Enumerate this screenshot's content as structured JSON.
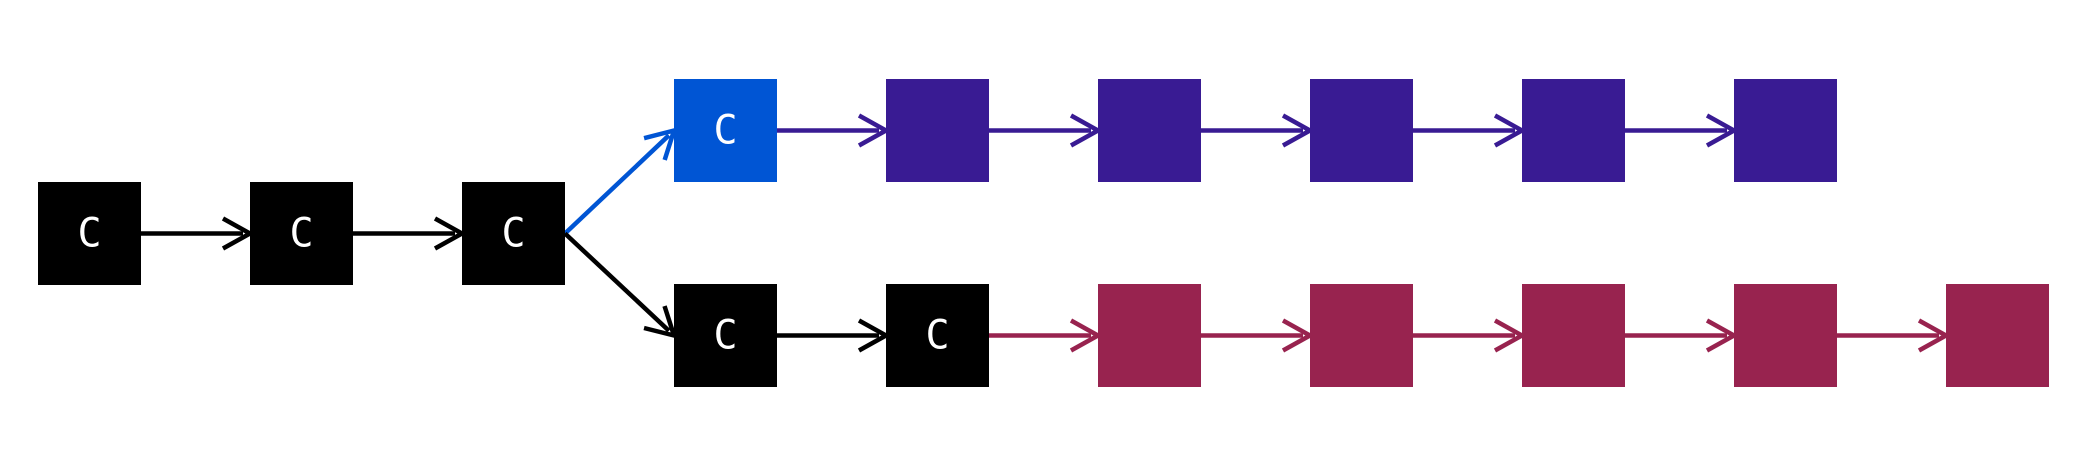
{
  "colors": {
    "background": "#ffffff",
    "black": "#000000",
    "blue": "#0055d4",
    "purple": "#391b93",
    "crimson": "#98234f",
    "label": "#ffffff"
  },
  "main_chain": {
    "nodes": [
      {
        "label": "C",
        "color": "#000000"
      },
      {
        "label": "C",
        "color": "#000000"
      },
      {
        "label": "C",
        "color": "#000000"
      }
    ],
    "edge_color": "#000000"
  },
  "upper_branch": {
    "branch_edge_color": "#0055d4",
    "nodes": [
      {
        "label": "C",
        "color": "#0055d4"
      },
      {
        "label": "",
        "color": "#391b93"
      },
      {
        "label": "",
        "color": "#391b93"
      },
      {
        "label": "",
        "color": "#391b93"
      },
      {
        "label": "",
        "color": "#391b93"
      },
      {
        "label": "",
        "color": "#391b93"
      }
    ],
    "edge_color": "#391b93"
  },
  "lower_branch": {
    "branch_edge_color": "#000000",
    "nodes": [
      {
        "label": "C",
        "color": "#000000"
      },
      {
        "label": "C",
        "color": "#000000"
      },
      {
        "label": "",
        "color": "#98234f"
      },
      {
        "label": "",
        "color": "#98234f"
      },
      {
        "label": "",
        "color": "#98234f"
      },
      {
        "label": "",
        "color": "#98234f"
      },
      {
        "label": "",
        "color": "#98234f"
      }
    ],
    "edge_colors": [
      "#000000",
      "#98234f",
      "#98234f",
      "#98234f",
      "#98234f",
      "#98234f"
    ]
  }
}
